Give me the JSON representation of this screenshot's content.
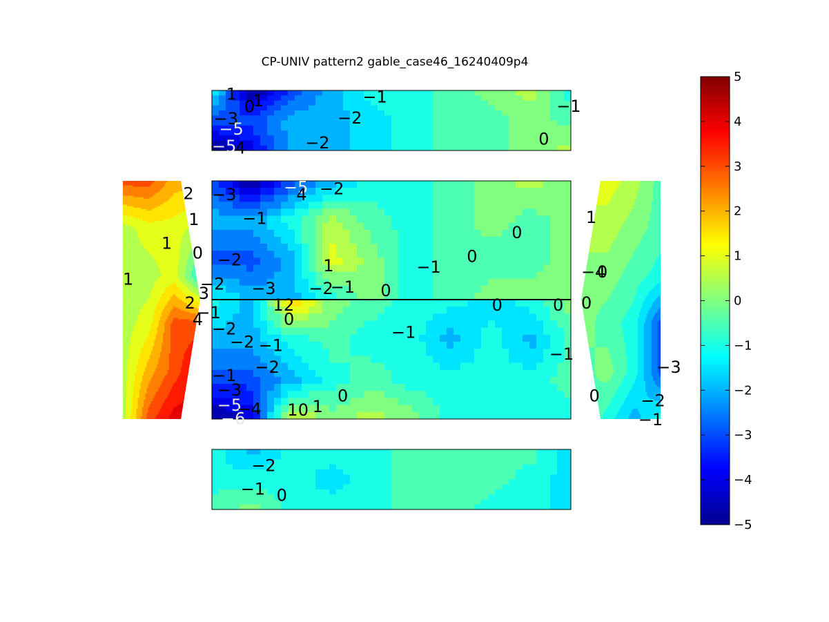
{
  "chart_data": {
    "type": "heatmap",
    "subtype": "filled-contour",
    "title": "CP-UNIV pattern2 gable_case46_16240409p4",
    "colormap": "jet",
    "colorbar": {
      "position": "right",
      "range": [
        -5,
        5
      ],
      "ticks": [
        "5",
        "4",
        "3",
        "2",
        "1",
        "0",
        "−1",
        "−2",
        "−3",
        "−4",
        "−5"
      ]
    },
    "surfaces": [
      {
        "name": "top-strip",
        "samples": [
          [
            -1,
            -5,
            -3,
            -2,
            -1,
            -1,
            -0.5,
            0,
            0.5,
            -1
          ],
          [
            -3,
            -3,
            -2,
            -2,
            -1.5,
            -1,
            -0.5,
            -0.5,
            0,
            -0.5
          ],
          [
            -5,
            -4,
            -2,
            -2,
            -1.5,
            -1,
            -0.5,
            -0.5,
            0,
            0.5
          ]
        ],
        "labels": [
          {
            "t": "1",
            "x": 0.04,
            "y": 0.05
          },
          {
            "t": "0",
            "x": 0.09,
            "y": 0.26
          },
          {
            "t": "1",
            "x": 0.115,
            "y": 0.16
          },
          {
            "t": "−1",
            "x": 0.42,
            "y": 0.1
          },
          {
            "t": "−1",
            "x": 0.96,
            "y": 0.25
          },
          {
            "t": "−3",
            "x": 0.005,
            "y": 0.46
          },
          {
            "t": "−5",
            "x": 0.02,
            "y": 0.63,
            "light": true
          },
          {
            "t": "−2",
            "x": 0.35,
            "y": 0.45
          },
          {
            "t": "−2",
            "x": 0.26,
            "y": 0.86
          },
          {
            "t": "0",
            "x": 0.91,
            "y": 0.8
          },
          {
            "t": "−5",
            "x": 0.0,
            "y": 0.92,
            "light": true
          },
          {
            "t": "4",
            "x": 0.065,
            "y": 0.95
          }
        ]
      },
      {
        "name": "main-upper",
        "samples": [
          [
            -3,
            -5,
            -3,
            -2,
            -1,
            -1,
            -0.5,
            0,
            0.5,
            0
          ],
          [
            -2,
            -2,
            -1,
            0.5,
            -0.5,
            -1,
            -0.5,
            0,
            -0.5,
            0
          ],
          [
            -3,
            -3,
            -2,
            1,
            0,
            -1,
            -0.5,
            -0.5,
            -0.5,
            0
          ],
          [
            -1,
            -2,
            -2,
            -1,
            0,
            -1,
            -0.5,
            0,
            0,
            0
          ]
        ],
        "labels": [
          {
            "t": "−3",
            "x": 0.0,
            "y": 0.11
          },
          {
            "t": "−5",
            "x": 0.2,
            "y": 0.05,
            "light": true
          },
          {
            "t": "4",
            "x": 0.235,
            "y": 0.11
          },
          {
            "t": "−2",
            "x": 0.3,
            "y": 0.06
          },
          {
            "t": "−1",
            "x": 0.085,
            "y": 0.31
          },
          {
            "t": "0",
            "x": 0.835,
            "y": 0.43
          },
          {
            "t": "−2",
            "x": 0.015,
            "y": 0.66
          },
          {
            "t": "1",
            "x": 0.31,
            "y": 0.71
          },
          {
            "t": "0",
            "x": 0.71,
            "y": 0.63
          },
          {
            "t": "−1",
            "x": 0.57,
            "y": 0.72
          },
          {
            "t": "−3",
            "x": 0.11,
            "y": 0.9
          },
          {
            "t": "−2",
            "x": 0.27,
            "y": 0.9
          },
          {
            "t": "−1",
            "x": 0.33,
            "y": 0.89
          },
          {
            "t": "0",
            "x": 0.47,
            "y": 0.92
          }
        ]
      },
      {
        "name": "main-lower",
        "samples": [
          [
            -1,
            -2,
            2,
            0,
            -0.5,
            -1,
            -1,
            -1.5,
            -1,
            0
          ],
          [
            -2,
            -2,
            -1,
            -0.5,
            -1,
            -1,
            -2,
            -1,
            -2,
            -0.5
          ],
          [
            -3,
            -3,
            -2,
            -1,
            -0.5,
            -1,
            -1,
            -1,
            -1,
            -0.5
          ],
          [
            -5,
            -4,
            1,
            0,
            0.5,
            0,
            -1,
            -1,
            -1,
            -1
          ]
        ],
        "labels": [
          {
            "t": "1",
            "x": 0.17,
            "y": 0.04
          },
          {
            "t": "2",
            "x": 0.2,
            "y": 0.04
          },
          {
            "t": "0",
            "x": 0.2,
            "y": 0.16
          },
          {
            "t": "−1",
            "x": 0.5,
            "y": 0.27
          },
          {
            "t": "0",
            "x": 0.78,
            "y": 0.04
          },
          {
            "t": "0",
            "x": 0.95,
            "y": 0.04
          },
          {
            "t": "−2",
            "x": 0.0,
            "y": 0.24
          },
          {
            "t": "−2",
            "x": 0.05,
            "y": 0.35
          },
          {
            "t": "−1",
            "x": 0.13,
            "y": 0.38
          },
          {
            "t": "−2",
            "x": 0.12,
            "y": 0.56
          },
          {
            "t": "−1",
            "x": 0.94,
            "y": 0.45
          },
          {
            "t": "−1",
            "x": 0.0,
            "y": 0.63
          },
          {
            "t": "−3",
            "x": 0.015,
            "y": 0.75
          },
          {
            "t": "0",
            "x": 0.35,
            "y": 0.8
          },
          {
            "t": "−5",
            "x": 0.015,
            "y": 0.88,
            "light": true
          },
          {
            "t": "−4",
            "x": 0.07,
            "y": 0.91
          },
          {
            "t": "1",
            "x": 0.21,
            "y": 0.92
          },
          {
            "t": "0",
            "x": 0.24,
            "y": 0.92
          },
          {
            "t": "1",
            "x": 0.28,
            "y": 0.89
          },
          {
            "t": "−6",
            "x": 0.025,
            "y": 0.99,
            "light": true
          }
        ]
      },
      {
        "name": "bottom-strip",
        "samples": [
          [
            -1,
            -2,
            -1,
            -1,
            -1,
            -0.5,
            -0.5,
            -0.5,
            -0.5,
            -1.5
          ],
          [
            -1,
            -1,
            -1,
            -1.5,
            -1,
            -0.5,
            -0.5,
            -0.5,
            -1,
            -1.5
          ],
          [
            -0.5,
            0,
            -1,
            -1,
            -1,
            -0.5,
            -0.5,
            -1,
            -1,
            -1.5
          ]
        ],
        "labels": [
          {
            "t": "−2",
            "x": 0.11,
            "y": 0.26
          },
          {
            "t": "−1",
            "x": 0.08,
            "y": 0.65
          },
          {
            "t": "0",
            "x": 0.18,
            "y": 0.75
          }
        ]
      },
      {
        "name": "left-wall",
        "samples": [
          [
            3,
            3,
            2,
            2
          ],
          [
            0.5,
            1,
            1,
            0.5
          ],
          [
            0.5,
            0.5,
            1,
            -1
          ],
          [
            0.5,
            1,
            3,
            3
          ],
          [
            0.5,
            2,
            3,
            4
          ],
          [
            0.5,
            3,
            4,
            4
          ]
        ],
        "labels": [
          {
            "t": "2",
            "x": 0.78,
            "y": 0.05
          },
          {
            "t": "1",
            "x": 0.85,
            "y": 0.16
          },
          {
            "t": "1",
            "x": 0.5,
            "y": 0.26
          },
          {
            "t": "0",
            "x": 0.9,
            "y": 0.3
          },
          {
            "t": "1",
            "x": 0.0,
            "y": 0.41
          },
          {
            "t": "−2",
            "x": 1.0,
            "y": 0.43
          },
          {
            "t": "3",
            "x": 0.98,
            "y": 0.47
          },
          {
            "t": "2",
            "x": 0.8,
            "y": 0.51
          },
          {
            "t": "−1",
            "x": 0.95,
            "y": 0.55
          },
          {
            "t": "4",
            "x": 0.9,
            "y": 0.58
          }
        ]
      },
      {
        "name": "right-wall",
        "samples": [
          [
            1,
            1,
            0.5,
            -0.5
          ],
          [
            0.5,
            0.5,
            0,
            -0.5
          ],
          [
            0,
            0,
            -0.5,
            -1
          ],
          [
            0,
            -0.5,
            -1,
            -3
          ],
          [
            -0.5,
            0,
            -1,
            -3
          ],
          [
            0,
            -1,
            -2,
            -1
          ]
        ],
        "labels": [
          {
            "t": "1",
            "x": 0.06,
            "y": 0.15
          },
          {
            "t": "−4",
            "x": 0.0,
            "y": 0.38
          },
          {
            "t": "0",
            "x": 0.2,
            "y": 0.38
          },
          {
            "t": "0",
            "x": 0.0,
            "y": 0.51
          },
          {
            "t": "−3",
            "x": 0.95,
            "y": 0.78
          },
          {
            "t": "0",
            "x": 0.1,
            "y": 0.9
          },
          {
            "t": "−2",
            "x": 0.75,
            "y": 0.92
          },
          {
            "t": "−1",
            "x": 0.72,
            "y": 1.0
          }
        ]
      }
    ]
  }
}
